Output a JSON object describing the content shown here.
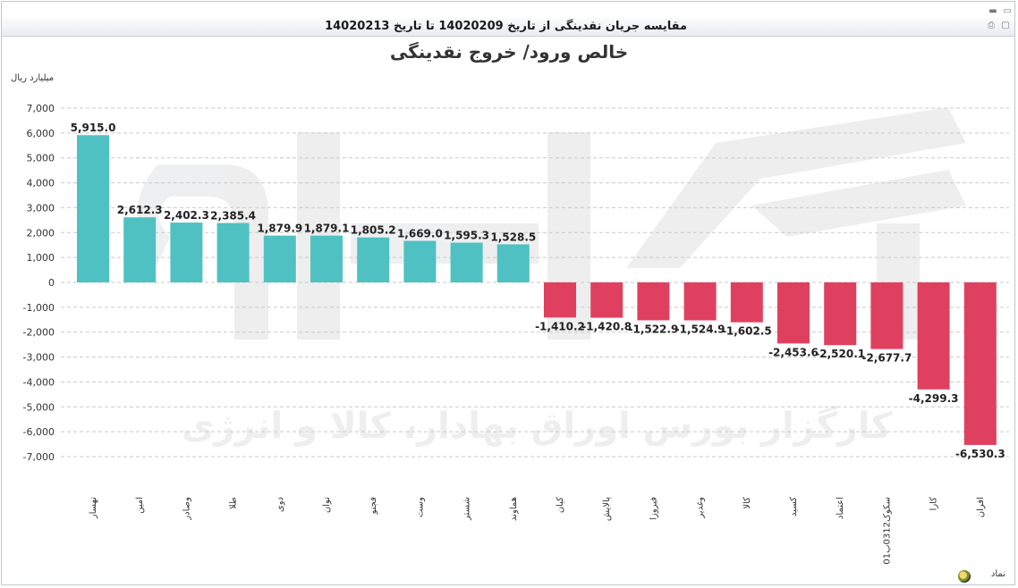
{
  "window": {
    "title": "مقایسه جریان نقدینگی از تاریخ 14020209 تا تاریخ 14020213"
  },
  "chart_data": {
    "type": "bar",
    "title": "خالص ورود/ خروج نقدینگی",
    "ylabel": "میلیارد ریال",
    "xlabel": "نماد",
    "ylim": [
      -7000,
      7000
    ],
    "yticks": [
      7000,
      6000,
      5000,
      4000,
      3000,
      2000,
      1000,
      0,
      -1000,
      -2000,
      -3000,
      -4000,
      -5000,
      -6000,
      -7000
    ],
    "ytick_labels": [
      "7,000",
      "6,000",
      "5,000",
      "4,000",
      "3,000",
      "2,000",
      "1,000",
      "0",
      "-1,000",
      "-2,000",
      "-3,000",
      "-4,000",
      "-5,000",
      "-6,000",
      "-7,000"
    ],
    "grid": true,
    "categories": [
      "تهسار",
      "امین",
      "وصادر",
      "طلا",
      "دوی",
      "توان",
      "فجنو",
      "وست",
      "شستر",
      "هماوند",
      "کیان",
      "پالایش",
      "فیروزا",
      "وغدیر",
      "کالا",
      "کسید",
      "اعتماد",
      "سکوک0312ب01",
      "کارا",
      "افران"
    ],
    "values": [
      5915.0,
      2612.3,
      2402.3,
      2385.4,
      1879.9,
      1879.1,
      1805.2,
      1669.0,
      1595.3,
      1528.5,
      -1410.2,
      -1420.8,
      -1522.9,
      -1524.9,
      -1602.5,
      -2453.6,
      -2520.1,
      -2677.7,
      -4299.3,
      -6530.3
    ],
    "value_labels": [
      "5,915.0",
      "2,612.3",
      "2,402.3",
      "2,385.4",
      "1,879.9",
      "1,879.1",
      "1,805.2",
      "1,669.0",
      "1,595.3",
      "1,528.5",
      "-1,410.2",
      "-1,420.8",
      "-1,522.9",
      "-1,524.9",
      "-1,602.5",
      "-2,453.6",
      "-2,520.1",
      "-2,677.7",
      "-4,299.3",
      "-6,530.3"
    ],
    "colors": {
      "positive": "#4fc1c3",
      "negative": "#e0405f"
    }
  },
  "watermark_text": "کارگزار بورس اوراق بهادار، کالا و انرژی"
}
